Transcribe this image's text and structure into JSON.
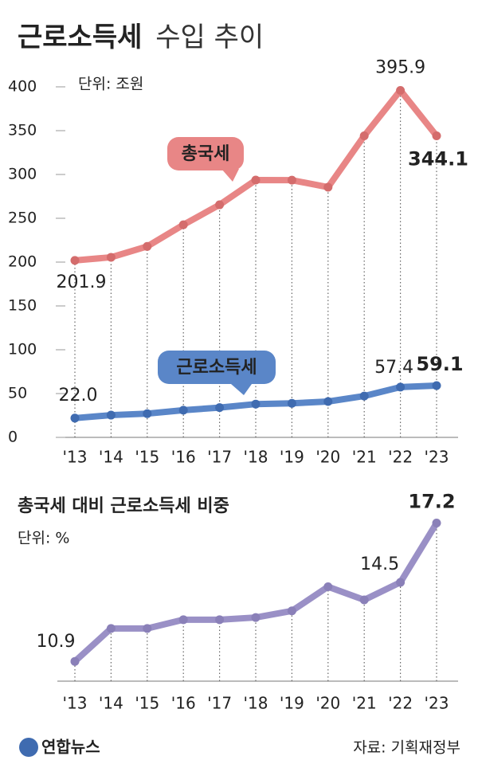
{
  "title": {
    "bold": "근로소득세",
    "regular": "수입 추이"
  },
  "logo": "연합뉴스",
  "source": "자료: 기획재정부",
  "chart_data": [
    {
      "type": "line",
      "unit": "단위: 조원",
      "categories": [
        "'13",
        "'14",
        "'15",
        "'16",
        "'17",
        "'18",
        "'19",
        "'20",
        "'21",
        "'22",
        "'23"
      ],
      "ylim": [
        0,
        400
      ],
      "yticks": [
        0,
        50,
        100,
        150,
        200,
        250,
        300,
        350,
        400
      ],
      "series": [
        {
          "name": "총국세",
          "color": "#e88686",
          "values": [
            201.9,
            205.5,
            217.9,
            242.6,
            265.4,
            293.6,
            293.5,
            285.5,
            344.1,
            395.9,
            344.1
          ],
          "value_labels": [
            "201.9",
            null,
            null,
            null,
            null,
            null,
            null,
            null,
            null,
            "395.9",
            "344.1"
          ]
        },
        {
          "name": "근로소득세",
          "color": "#5a86c8",
          "values": [
            22.0,
            25.4,
            27.1,
            31.0,
            34.0,
            38.0,
            38.9,
            40.9,
            47.2,
            57.4,
            59.1
          ],
          "value_labels": [
            "22.0",
            null,
            null,
            null,
            null,
            null,
            null,
            null,
            null,
            "57.4",
            "59.1"
          ]
        }
      ]
    },
    {
      "type": "line",
      "title": "총국세 대비 근로소득세 비중",
      "unit": "단위: %",
      "categories": [
        "'13",
        "'14",
        "'15",
        "'16",
        "'17",
        "'18",
        "'19",
        "'20",
        "'21",
        "'22",
        "'23"
      ],
      "ylim": [
        10,
        17.8
      ],
      "series": [
        {
          "color": "#9a90c6",
          "values": [
            10.9,
            12.4,
            12.4,
            12.8,
            12.8,
            12.9,
            13.2,
            14.3,
            13.7,
            14.5,
            17.2
          ],
          "value_labels": [
            "10.9",
            null,
            null,
            null,
            null,
            null,
            null,
            null,
            null,
            "14.5",
            "17.2"
          ]
        }
      ]
    }
  ]
}
